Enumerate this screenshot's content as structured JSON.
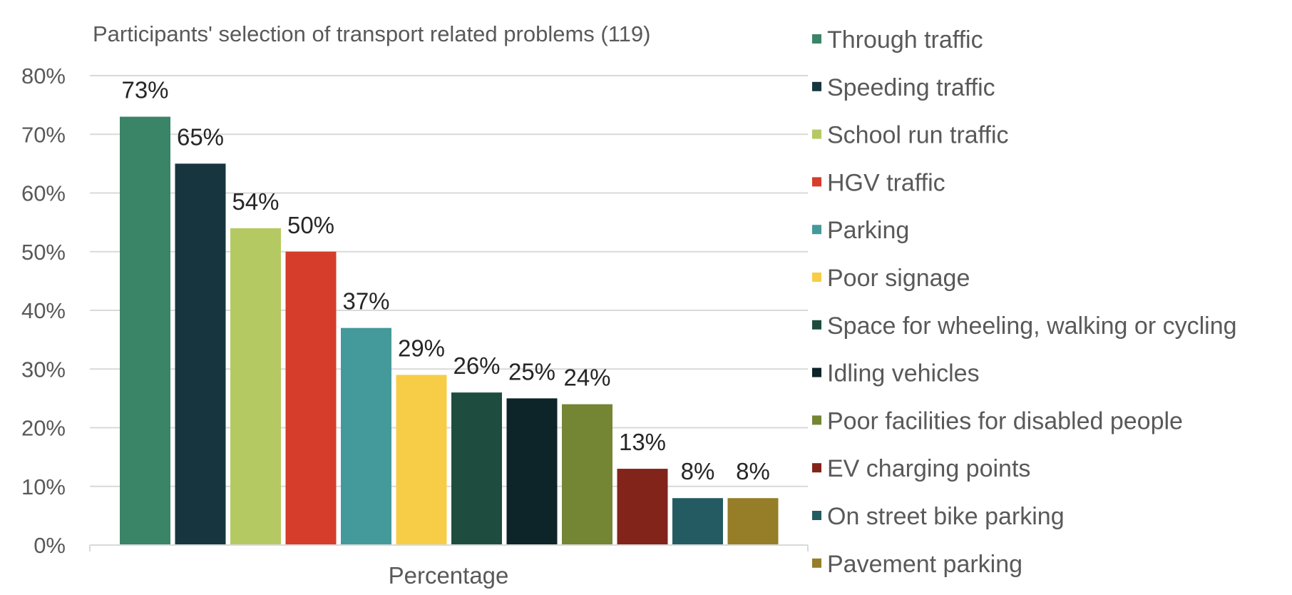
{
  "chart_data": {
    "type": "bar",
    "title": "Participants' selection of transport related problems (119)",
    "xlabel": "Percentage",
    "ylabel": "",
    "ylim": [
      0,
      80
    ],
    "yticks": [
      "0%",
      "10%",
      "20%",
      "30%",
      "40%",
      "50%",
      "60%",
      "70%",
      "80%"
    ],
    "grid": true,
    "legend_position": "right",
    "categories": [
      "Percentage"
    ],
    "series": [
      {
        "name": "Through traffic",
        "values": [
          73
        ],
        "label": "73%",
        "color": "#3a8467"
      },
      {
        "name": "Speeding traffic",
        "values": [
          65
        ],
        "label": "65%",
        "color": "#16353f"
      },
      {
        "name": "School run traffic",
        "values": [
          54
        ],
        "label": "54%",
        "color": "#b5c963"
      },
      {
        "name": "HGV traffic",
        "values": [
          50
        ],
        "label": "50%",
        "color": "#d63d2a"
      },
      {
        "name": "Parking",
        "values": [
          37
        ],
        "label": "37%",
        "color": "#44999a"
      },
      {
        "name": "Poor signage",
        "values": [
          29
        ],
        "label": "29%",
        "color": "#f7cd47"
      },
      {
        "name": "Space for wheeling, walking or cycling",
        "values": [
          26
        ],
        "label": "26%",
        "color": "#1e4d3f"
      },
      {
        "name": "Idling vehicles",
        "values": [
          25
        ],
        "label": "25%",
        "color": "#0d2428"
      },
      {
        "name": "Poor facilities for disabled people",
        "values": [
          24
        ],
        "label": "24%",
        "color": "#748534"
      },
      {
        "name": "EV charging points",
        "values": [
          13
        ],
        "label": "13%",
        "color": "#82241a"
      },
      {
        "name": "On street bike parking",
        "values": [
          8
        ],
        "label": "8%",
        "color": "#245b62"
      },
      {
        "name": "Pavement parking",
        "values": [
          8
        ],
        "label": "8%",
        "color": "#957e27"
      }
    ]
  }
}
